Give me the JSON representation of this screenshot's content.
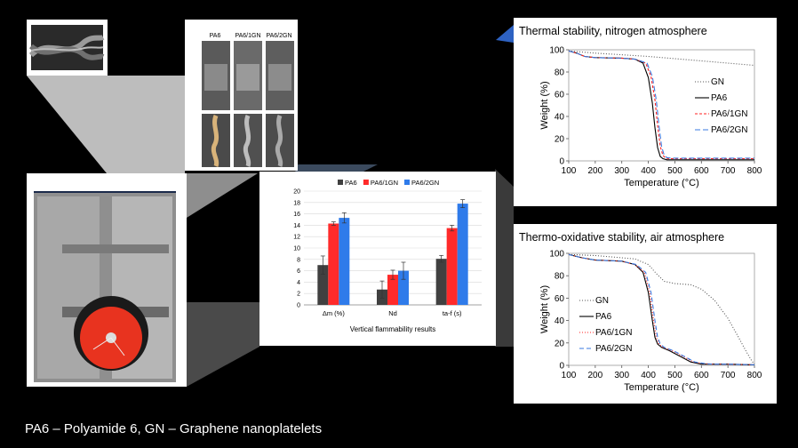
{
  "caption": "PA6 – Polyamide 6, GN – Graphene nanoplatelets",
  "samples_panel": {
    "labels": [
      "PA6",
      "PA6/1GN",
      "PA6/2GN"
    ]
  },
  "chart_data": [
    {
      "type": "bar",
      "title": "",
      "xlabel": "Vertical flammability results",
      "ylabel": "",
      "ylim": [
        0,
        20
      ],
      "yticks": [
        0,
        2,
        4,
        6,
        8,
        10,
        12,
        14,
        16,
        18,
        20
      ],
      "categories": [
        "Δm (%)",
        "Nd",
        "ta-f (s)"
      ],
      "series": [
        {
          "name": "PA6",
          "color": "#404040",
          "values": [
            7.0,
            2.7,
            8.1
          ],
          "errors": [
            1.6,
            1.5,
            0.6
          ]
        },
        {
          "name": "PA6/1GN",
          "color": "#ff2a2a",
          "values": [
            14.3,
            5.3,
            13.5
          ],
          "errors": [
            0.3,
            0.8,
            0.5
          ]
        },
        {
          "name": "PA6/2GN",
          "color": "#2f7bea",
          "values": [
            15.3,
            6.0,
            17.8
          ],
          "errors": [
            0.9,
            1.5,
            0.7
          ]
        }
      ],
      "legend": "top"
    },
    {
      "type": "line",
      "title": "Thermal stability, nitrogen atmosphere",
      "xlabel": "Temperature (°C)",
      "ylabel": "Weight (%)",
      "xlim": [
        100,
        800
      ],
      "ylim": [
        0,
        100
      ],
      "xticks": [
        100,
        200,
        300,
        400,
        500,
        600,
        700,
        800
      ],
      "yticks": [
        0,
        20,
        40,
        60,
        80,
        100
      ],
      "legend": "right",
      "series": [
        {
          "name": "GN",
          "color": "#555555",
          "dash": "1,2",
          "x": [
            100,
            200,
            300,
            400,
            500,
            600,
            700,
            800
          ],
          "y": [
            99,
            97,
            95.5,
            94,
            92,
            90,
            88,
            86
          ]
        },
        {
          "name": "PA6",
          "color": "#000000",
          "dash": "",
          "x": [
            100,
            130,
            160,
            200,
            300,
            350,
            380,
            400,
            415,
            425,
            435,
            445,
            455,
            470,
            500,
            600,
            700,
            800
          ],
          "y": [
            99,
            97,
            94,
            93,
            92.5,
            91.5,
            88,
            75,
            52,
            30,
            12,
            4,
            2,
            1,
            1,
            1,
            1,
            1
          ]
        },
        {
          "name": "PA6/1GN",
          "color": "#ff2020",
          "dash": "3,2",
          "x": [
            100,
            130,
            160,
            200,
            300,
            350,
            390,
            410,
            425,
            435,
            445,
            455,
            465,
            480,
            500,
            600,
            700,
            800
          ],
          "y": [
            99,
            97,
            94,
            93,
            92.5,
            91.5,
            88,
            76,
            55,
            32,
            13,
            5,
            2.5,
            2,
            2,
            2,
            2,
            2
          ]
        },
        {
          "name": "PA6/2GN",
          "color": "#3a7ae0",
          "dash": "6,3",
          "x": [
            100,
            130,
            160,
            200,
            300,
            350,
            395,
            415,
            430,
            440,
            450,
            460,
            470,
            485,
            500,
            600,
            700,
            800
          ],
          "y": [
            99,
            97,
            94,
            93,
            92.5,
            91.5,
            88,
            76,
            55,
            32,
            13,
            5,
            3,
            2.5,
            2.5,
            2.5,
            2.5,
            2.5
          ]
        }
      ]
    },
    {
      "type": "line",
      "title": "Thermo-oxidative stability, air atmosphere",
      "xlabel": "Temperature (°C)",
      "ylabel": "Weight (%)",
      "xlim": [
        100,
        800
      ],
      "ylim": [
        0,
        100
      ],
      "xticks": [
        100,
        200,
        300,
        400,
        500,
        600,
        700,
        800
      ],
      "yticks": [
        0,
        20,
        40,
        60,
        80,
        100
      ],
      "legend": "left",
      "series": [
        {
          "name": "GN",
          "color": "#555555",
          "dash": "1,2",
          "x": [
            100,
            200,
            300,
            350,
            400,
            430,
            460,
            500,
            560,
            600,
            650,
            700,
            740,
            770,
            790,
            800
          ],
          "y": [
            99,
            98,
            96,
            95,
            90,
            82,
            75,
            73,
            72,
            68,
            58,
            42,
            25,
            12,
            4,
            1
          ]
        },
        {
          "name": "PA6",
          "color": "#000000",
          "dash": "",
          "x": [
            100,
            150,
            200,
            300,
            350,
            380,
            400,
            415,
            425,
            435,
            450,
            480,
            520,
            560,
            600,
            650,
            700,
            800
          ],
          "y": [
            99,
            96,
            94,
            93,
            90,
            83,
            65,
            40,
            25,
            19,
            16,
            13,
            8,
            3,
            1,
            1,
            1,
            0.5
          ]
        },
        {
          "name": "PA6/1GN",
          "color": "#ff2020",
          "dash": "1,2",
          "x": [
            100,
            150,
            200,
            300,
            350,
            385,
            405,
            420,
            430,
            440,
            455,
            490,
            530,
            570,
            610,
            650,
            700,
            800
          ],
          "y": [
            99,
            96,
            94,
            93,
            90,
            83,
            65,
            40,
            25,
            19,
            16,
            13,
            8,
            3,
            1.5,
            1,
            1,
            0.5
          ]
        },
        {
          "name": "PA6/2GN",
          "color": "#3a7ae0",
          "dash": "5,3",
          "x": [
            100,
            150,
            200,
            300,
            355,
            390,
            410,
            425,
            435,
            445,
            460,
            495,
            535,
            575,
            615,
            650,
            700,
            800
          ],
          "y": [
            99,
            96,
            94,
            93,
            90,
            83,
            65,
            40,
            25,
            19,
            16,
            13,
            8,
            3,
            1.5,
            1,
            1,
            0.5
          ]
        }
      ]
    }
  ]
}
